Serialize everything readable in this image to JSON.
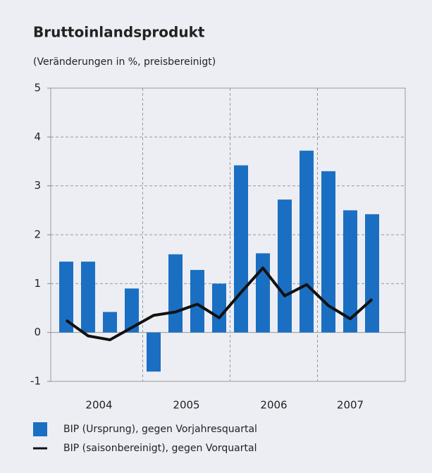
{
  "chart_data": {
    "type": "bar",
    "title": "Bruttoinlandsprodukt",
    "subtitle": "(Veränderungen in %, preisbereinigt)",
    "groups": [
      {
        "label": "2004",
        "size": 4
      },
      {
        "label": "2005",
        "size": 4
      },
      {
        "label": "2006",
        "size": 4
      },
      {
        "label": "2007",
        "size": 3
      }
    ],
    "series": [
      {
        "name": "BIP (Ursprung), gegen Vorjahresquartal",
        "type": "bar",
        "color": "#1b6fc2",
        "values": [
          1.45,
          1.45,
          0.42,
          0.9,
          -0.8,
          1.6,
          1.28,
          1.0,
          3.42,
          1.62,
          2.72,
          3.72,
          3.3,
          2.5,
          2.42
        ]
      },
      {
        "name": "BIP (saisonbereinigt), gegen Vorquartal",
        "type": "line",
        "color": "#111111",
        "values": [
          0.25,
          -0.07,
          -0.15,
          0.1,
          0.35,
          0.42,
          0.58,
          0.3,
          0.82,
          1.32,
          0.75,
          0.98,
          0.55,
          0.28,
          0.68
        ]
      }
    ],
    "ylim": [
      -1,
      5
    ],
    "yticks": [
      -1,
      0,
      1,
      2,
      3,
      4,
      5
    ],
    "grid": true
  }
}
